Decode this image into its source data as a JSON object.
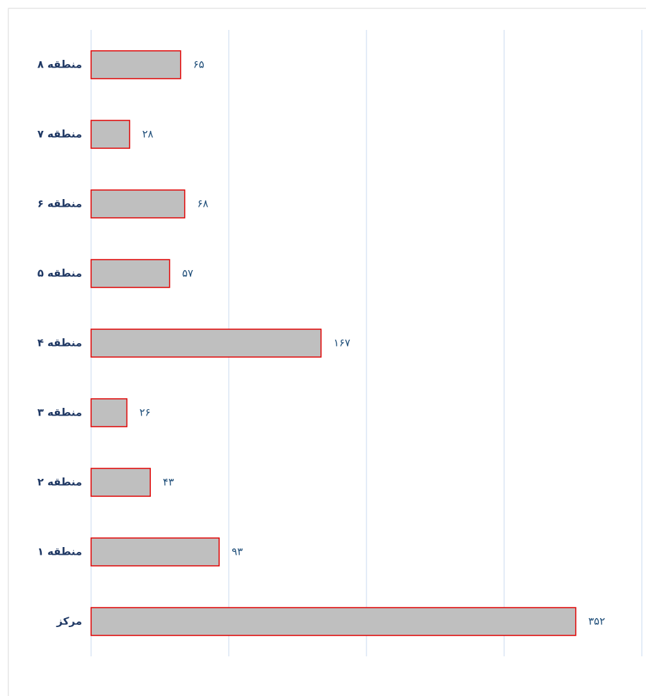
{
  "chart_data": {
    "type": "hbar",
    "categories": [
      "منطقه ۸",
      "منطقه ۷",
      "منطقه ۶",
      "منطقه ۵",
      "منطقه ۴",
      "منطقه ۳",
      "منطقه ۲",
      "منطقه ۱",
      "مرکز"
    ],
    "values": [
      65,
      28,
      68,
      57,
      167,
      26,
      43,
      93,
      352
    ],
    "value_labels": [
      "۶۵",
      "۲۸",
      "۶۸",
      "۵۷",
      "۱۶۷",
      "۲۶",
      "۴۳",
      "۹۳",
      "۳۵۲"
    ],
    "color": "#bfbfbf",
    "edge_color": "#e00000",
    "xlim": [
      0,
      400
    ],
    "xticks": [
      0,
      100,
      200,
      300,
      400
    ],
    "grid": true
  }
}
